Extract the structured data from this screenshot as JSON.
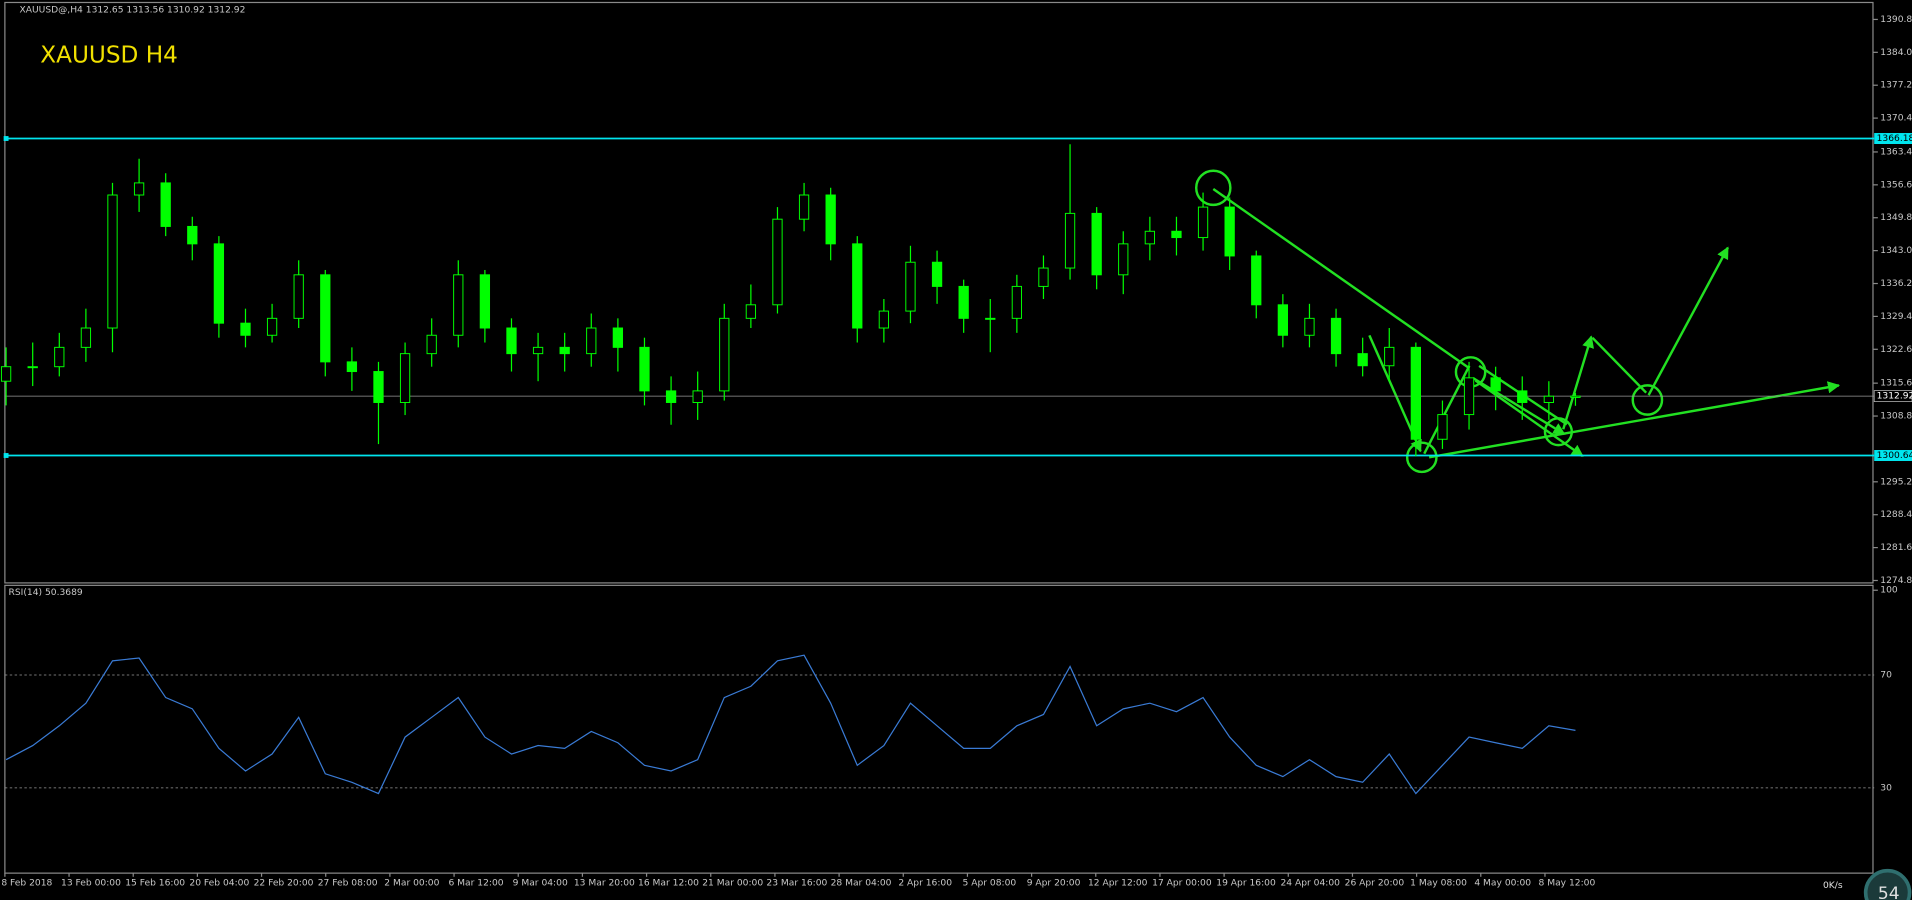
{
  "chart_data": {
    "type": "candlestick",
    "header": "XAUUSD@,H4  1312.65 1313.56 1310.92 1312.92",
    "title": "XAUUSD  H4",
    "color": "#00ff00",
    "open": [
      1316,
      1319,
      1319,
      1323,
      1327,
      1354.5,
      1357,
      1348,
      1344.4,
      1328,
      1325.5,
      1329,
      1338,
      1320,
      1318,
      1311.6,
      1321.7,
      1325.5,
      1338,
      1327,
      1321.7,
      1323,
      1321.7,
      1327,
      1323,
      1314,
      1311.6,
      1314,
      1329,
      1331.8,
      1349.5,
      1354.5,
      1344.4,
      1327,
      1330.5,
      1340.6,
      1335.6,
      1329,
      1329,
      1335.6,
      1339.4,
      1350.7,
      1338,
      1344.4,
      1347,
      1345.7,
      1352,
      1341.9,
      1331.8,
      1325.5,
      1329,
      1321.7,
      1319.2,
      1323,
      1304,
      1309.1,
      1316.7,
      1314,
      1311.6,
      1312.65
    ],
    "high": [
      1323,
      1324,
      1326,
      1331,
      1357,
      1362,
      1359,
      1350,
      1346,
      1331,
      1332,
      1341,
      1339,
      1323,
      1320,
      1324,
      1329,
      1341,
      1339,
      1329,
      1326,
      1326,
      1330,
      1329,
      1325,
      1317,
      1318,
      1332,
      1336,
      1352,
      1357,
      1356,
      1346,
      1333,
      1344,
      1343,
      1337,
      1333,
      1338,
      1342,
      1365,
      1352,
      1347,
      1350,
      1350,
      1355,
      1354,
      1343,
      1334,
      1332,
      1331,
      1325,
      1327,
      1324,
      1312,
      1320,
      1319,
      1317,
      1316,
      1313.56
    ],
    "low": [
      1311,
      1315,
      1317,
      1320,
      1322,
      1351,
      1346,
      1341,
      1325,
      1323,
      1324,
      1327,
      1317,
      1314,
      1303,
      1309,
      1319,
      1323,
      1324,
      1318,
      1316,
      1318,
      1319,
      1318,
      1311,
      1307,
      1308,
      1312,
      1327,
      1330,
      1347,
      1341,
      1324,
      1324,
      1328,
      1332,
      1326,
      1322,
      1326,
      1333,
      1337,
      1335,
      1334,
      1341,
      1342,
      1343,
      1339,
      1329,
      1323,
      1323,
      1319,
      1317,
      1316,
      1300.5,
      1302,
      1306,
      1310,
      1308,
      1308,
      1310.92
    ],
    "close": [
      1319,
      1319,
      1323,
      1327,
      1354.5,
      1357,
      1348,
      1344.4,
      1328,
      1325.5,
      1329,
      1338,
      1320,
      1318,
      1311.6,
      1321.7,
      1325.5,
      1338,
      1327,
      1321.7,
      1323,
      1321.7,
      1327,
      1323,
      1314,
      1311.6,
      1314,
      1329,
      1331.8,
      1349.5,
      1354.5,
      1344.4,
      1327,
      1330.5,
      1340.6,
      1335.6,
      1329,
      1329,
      1335.6,
      1339.4,
      1350.7,
      1338,
      1344.4,
      1347,
      1345.7,
      1352,
      1341.9,
      1331.8,
      1325.5,
      1329,
      1321.7,
      1319.2,
      1323,
      1304,
      1309.1,
      1316.7,
      1314,
      1311.6,
      1312.9,
      1312.92
    ],
    "ylim": [
      1274.55,
      1393.8
    ],
    "yticks": [
      {
        "value": 1390.8,
        "label": "1390.80"
      },
      {
        "value": 1384,
        "label": "1384.00"
      },
      {
        "value": 1377.2,
        "label": "1377.20"
      },
      {
        "value": 1370.4,
        "label": "1370.40"
      },
      {
        "value": 1363.4,
        "label": "1363.40"
      },
      {
        "value": 1356.6,
        "label": "1356.60"
      },
      {
        "value": 1349.8,
        "label": "1349.80"
      },
      {
        "value": 1343,
        "label": "1343.00"
      },
      {
        "value": 1336.2,
        "label": "1336.20"
      },
      {
        "value": 1329.4,
        "label": "1329.40"
      },
      {
        "value": 1322.6,
        "label": "1322.60"
      },
      {
        "value": 1315.6,
        "label": "1315.60"
      },
      {
        "value": 1308.8,
        "label": "1308.80"
      },
      {
        "value": 1295.2,
        "label": "1295.20"
      },
      {
        "value": 1288.4,
        "label": "1288.40"
      },
      {
        "value": 1281.6,
        "label": "1281.60"
      },
      {
        "value": 1274.8,
        "label": "1274.80"
      }
    ],
    "hlines": [
      {
        "value": 1366.18,
        "color": "#00e5ee"
      },
      {
        "value": 1300.64,
        "color": "#00e5ee"
      }
    ],
    "current_price": 1312.92,
    "x_labels": [
      "8 Feb 2018",
      "13 Feb 00:00",
      "15 Feb 16:00",
      "20 Feb 04:00",
      "22 Feb 20:00",
      "27 Feb 08:00",
      "2 Mar 00:00",
      "6 Mar 12:00",
      "9 Mar 04:00",
      "13 Mar 20:00",
      "16 Mar 12:00",
      "21 Mar 00:00",
      "23 Mar 16:00",
      "28 Mar 04:00",
      "2 Apr 16:00",
      "5 Apr 08:00",
      "9 Apr 20:00",
      "12 Apr 12:00",
      "17 Apr 00:00",
      "19 Apr 16:00",
      "24 Apr 04:00",
      "26 Apr 20:00",
      "1 May 08:00",
      "4 May 00:00",
      "8 May 12:00"
    ],
    "rsi": {
      "label": "RSI(14) 50.3689",
      "color": "#3a7bd5",
      "values": [
        40,
        45,
        52,
        60,
        75,
        76,
        62,
        58,
        44,
        36,
        42,
        55,
        35,
        32,
        28,
        48,
        55,
        62,
        48,
        42,
        45,
        44,
        50,
        46,
        38,
        36,
        40,
        62,
        66,
        75,
        77,
        60,
        38,
        45,
        60,
        52,
        44,
        44,
        52,
        56,
        73,
        52,
        58,
        60,
        57,
        62,
        48,
        38,
        34,
        40,
        34,
        32,
        42,
        28,
        38,
        48,
        46,
        44,
        52,
        50.3689
      ],
      "ylim": [
        0,
        100
      ],
      "yticks": [
        100,
        70,
        30
      ]
    },
    "overlay": {
      "speed": "0K/s",
      "badge": "54"
    }
  }
}
